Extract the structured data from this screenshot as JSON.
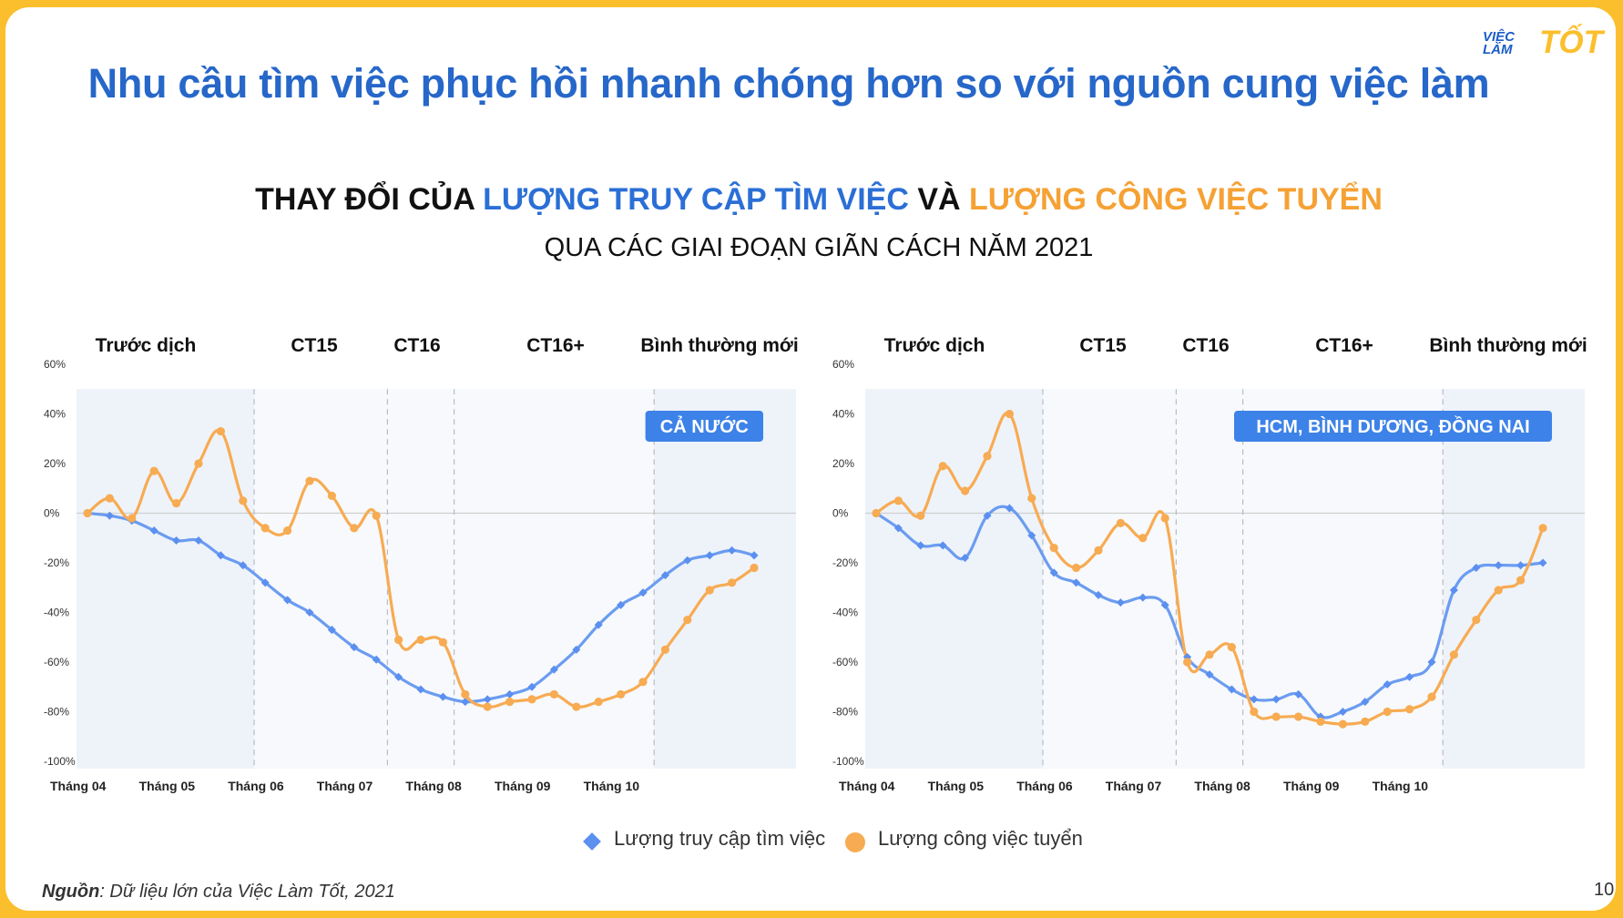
{
  "header": {
    "title": "Nhu cầu tìm việc phục hồi nhanh chóng hơn so với nguồn cung việc làm",
    "logo_line1": "VIỆC",
    "logo_line2": "LÀM",
    "logo_brand": "TỐT"
  },
  "subtitle": {
    "part1": "THAY ĐỔI CỦA ",
    "part2": "LƯỢNG TRUY CẬP TÌM VIỆC",
    "part3": " VÀ ",
    "part4": "LƯỢNG CÔNG VIỆC TUYỂN",
    "line2": "QUA CÁC GIAI ĐOẠN GIÃN CÁCH NĂM 2021"
  },
  "colors": {
    "blue": "#6b9cf0",
    "orange": "#f7ab52",
    "badge": "#3d82e8",
    "shade": "#eef3fa"
  },
  "legend": {
    "series1": "Lượng truy cập tìm việc",
    "series2": "Lượng công việc tuyển"
  },
  "footnote": {
    "source_label": "Nguồn",
    "source_text": ": Dữ liệu lớn của Việc Làm Tốt, 2021"
  },
  "page_number": "10",
  "chart_data": [
    {
      "type": "line",
      "badge": "CẢ NƯỚC",
      "phases": [
        "Trước dịch",
        "CT15",
        "CT16",
        "CT16+",
        "Bình thường mới"
      ],
      "phase_boundaries": [
        7.5,
        13.5,
        16.5,
        25.5
      ],
      "x_tick_labels": [
        "Tháng 04",
        "Tháng 05",
        "Tháng 06",
        "Tháng 07",
        "Tháng 08",
        "Tháng 09",
        "Tháng 10"
      ],
      "x_tick_positions": [
        0,
        4,
        8,
        12,
        16,
        20,
        24
      ],
      "y_tick_labels": [
        "60%",
        "40%",
        "20%",
        "0%",
        "-20%",
        "-40%",
        "-60%",
        "-80%",
        "-100%"
      ],
      "ylim": [
        -100,
        60
      ],
      "shaded_y_top": 50,
      "series": [
        {
          "name": "Lượng truy cập tìm việc",
          "marker": "diamond",
          "values": [
            0,
            -1,
            -3,
            -7,
            -11,
            -11,
            -17,
            -21,
            -28,
            -35,
            -40,
            -47,
            -54,
            -59,
            -66,
            -71,
            -74,
            -76,
            -75,
            -73,
            -70,
            -63,
            -55,
            -45,
            -37,
            -32,
            -25,
            -19,
            -17,
            -15,
            -17
          ]
        },
        {
          "name": "Lượng công việc tuyển",
          "marker": "circle",
          "values": [
            0,
            6,
            -2,
            17,
            4,
            20,
            33,
            5,
            -6,
            -7,
            13,
            7,
            -6,
            -1,
            -51,
            -51,
            -52,
            -73,
            -78,
            -76,
            -75,
            -73,
            -78,
            -76,
            -73,
            -68,
            -55,
            -43,
            -31,
            -28,
            -22
          ]
        }
      ]
    },
    {
      "type": "line",
      "badge": "HCM, BÌNH DƯƠNG, ĐỒNG NAI",
      "phases": [
        "Trước dịch",
        "CT15",
        "CT16",
        "CT16+",
        "Bình thường mới"
      ],
      "phase_boundaries": [
        7.5,
        13.5,
        16.5,
        25.5
      ],
      "x_tick_labels": [
        "Tháng 04",
        "Tháng 05",
        "Tháng 06",
        "Tháng 07",
        "Tháng 08",
        "Tháng 09",
        "Tháng 10"
      ],
      "x_tick_positions": [
        0,
        4,
        8,
        12,
        16,
        20,
        24
      ],
      "y_tick_labels": [
        "60%",
        "40%",
        "20%",
        "0%",
        "-20%",
        "-40%",
        "-60%",
        "-80%",
        "-100%"
      ],
      "ylim": [
        -100,
        60
      ],
      "shaded_y_top": 50,
      "series": [
        {
          "name": "Lượng truy cập tìm việc",
          "marker": "diamond",
          "values": [
            0,
            -6,
            -13,
            -13,
            -18,
            -1,
            2,
            -9,
            -24,
            -28,
            -33,
            -36,
            -34,
            -37,
            -58,
            -65,
            -71,
            -75,
            -75,
            -73,
            -82,
            -80,
            -76,
            -69,
            -66,
            -60,
            -31,
            -22,
            -21,
            -21,
            -20
          ]
        },
        {
          "name": "Lượng công việc tuyển",
          "marker": "circle",
          "values": [
            0,
            5,
            -1,
            19,
            9,
            23,
            40,
            6,
            -14,
            -22,
            -15,
            -4,
            -10,
            -2,
            -60,
            -57,
            -54,
            -80,
            -82,
            -82,
            -84,
            -85,
            -84,
            -80,
            -79,
            -74,
            -57,
            -43,
            -31,
            -27,
            -6
          ]
        }
      ]
    }
  ]
}
